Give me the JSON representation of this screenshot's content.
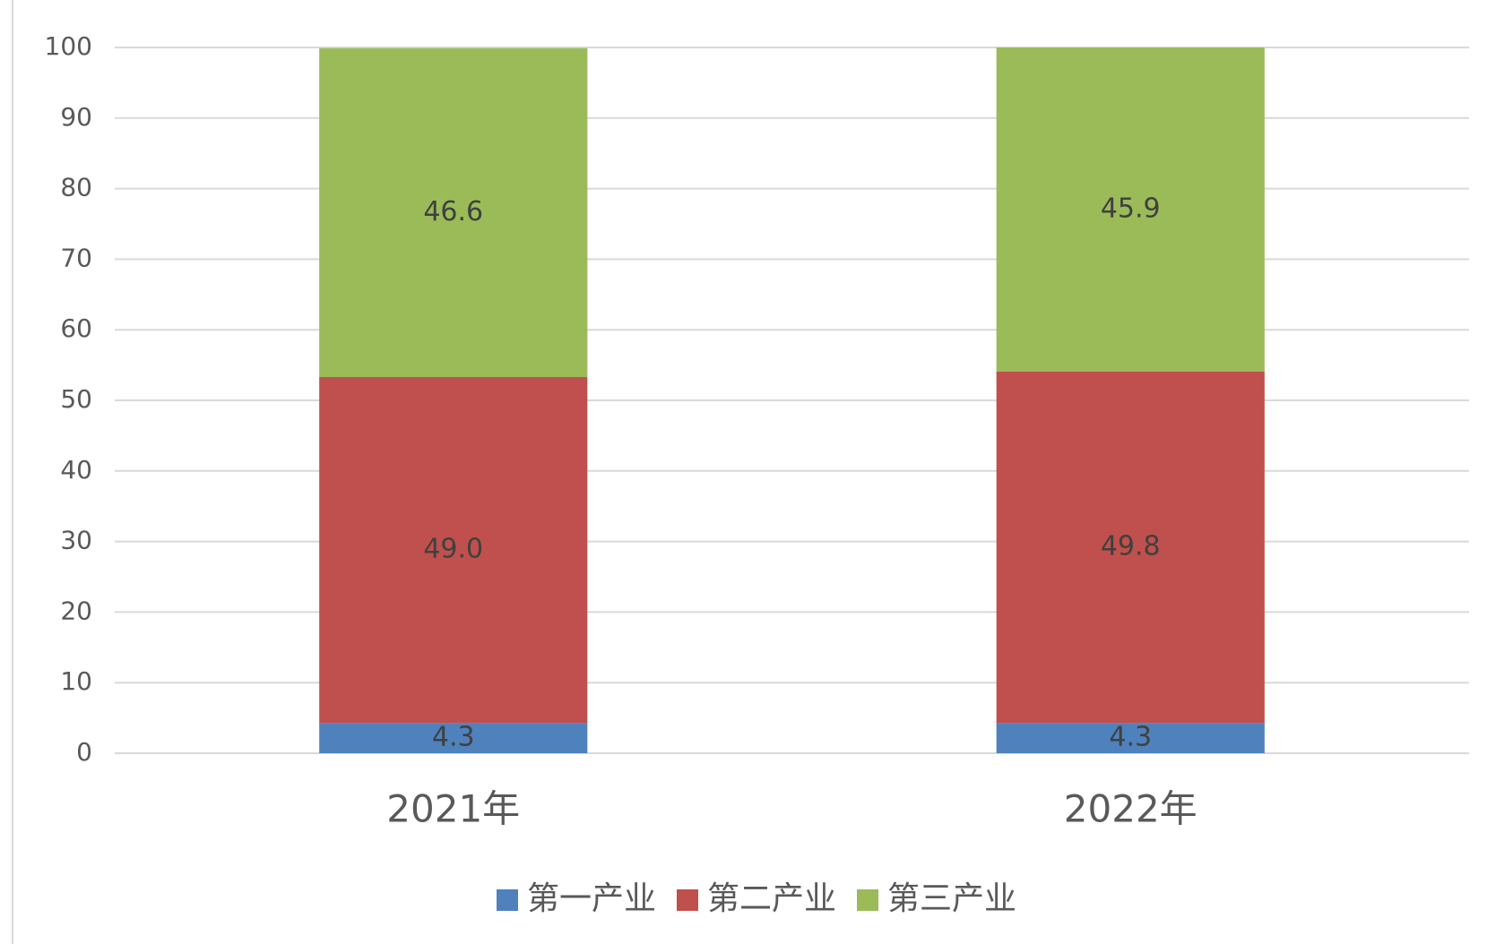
{
  "chart_data": {
    "type": "stacked-bar",
    "categories": [
      "2021年",
      "2022年"
    ],
    "series": [
      {
        "name": "第一产业",
        "color": "#4f81bd",
        "values": [
          4.3,
          4.3
        ]
      },
      {
        "name": "第二产业",
        "color": "#c0504d",
        "values": [
          49.0,
          49.8
        ],
        "value_labels": [
          "49.0",
          "49.8"
        ]
      },
      {
        "name": "第三产业",
        "color": "#9bbb59",
        "values": [
          46.6,
          45.9
        ]
      }
    ],
    "ylim": [
      0,
      100
    ],
    "yticks": [
      0,
      10,
      20,
      30,
      40,
      50,
      60,
      70,
      80,
      90,
      100
    ],
    "grid": true,
    "legend": "bottom"
  }
}
